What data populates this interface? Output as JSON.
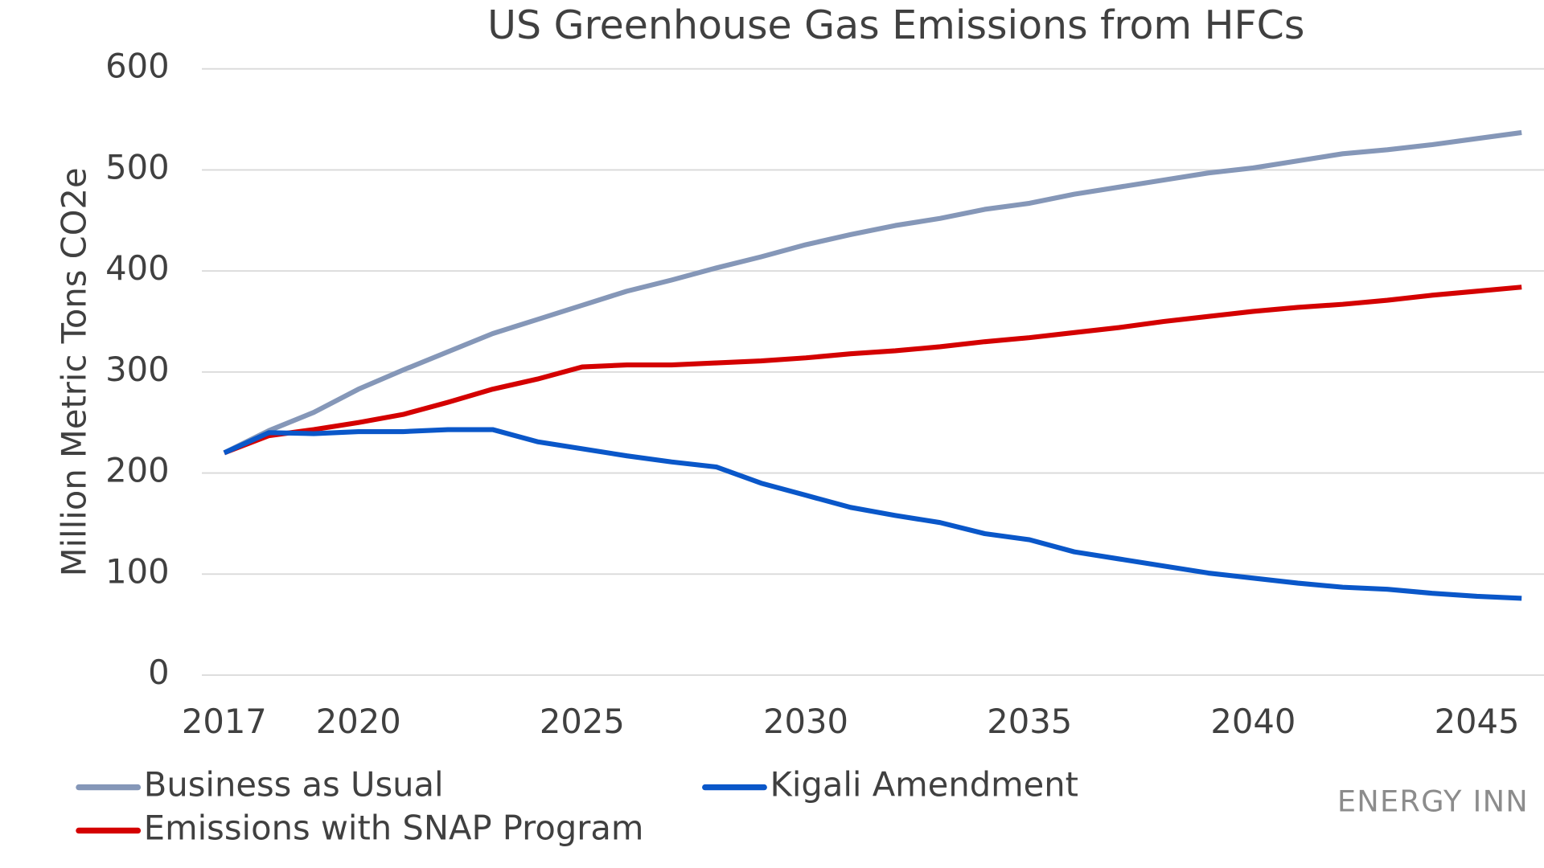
{
  "chart_data": {
    "type": "line",
    "title": "US Greenhouse Gas Emissions  from HFCs",
    "y_label": "Million Metric Tons CO2e",
    "source": "ENERGY INN",
    "x": [
      2017,
      2018,
      2019,
      2020,
      2021,
      2022,
      2023,
      2024,
      2025,
      2026,
      2027,
      2028,
      2029,
      2030,
      2031,
      2032,
      2033,
      2034,
      2035,
      2036,
      2037,
      2038,
      2039,
      2040,
      2041,
      2042,
      2043,
      2044,
      2045,
      2046
    ],
    "xlim": [
      2016.5,
      2046.5
    ],
    "xticks": [
      2017,
      2020,
      2025,
      2030,
      2035,
      2040,
      2045
    ],
    "ylim": [
      0,
      600
    ],
    "yticks": [
      0,
      100,
      200,
      300,
      400,
      500,
      600
    ],
    "grid": true,
    "series": [
      {
        "name": "Business as Usual",
        "color": "#8597b8",
        "values": [
          220,
          242,
          260,
          283,
          302,
          320,
          338,
          352,
          366,
          380,
          391,
          403,
          414,
          426,
          436,
          445,
          452,
          461,
          467,
          476,
          483,
          490,
          497,
          502,
          509,
          516,
          520,
          525,
          531,
          537
        ]
      },
      {
        "name": "Kigali Amendment",
        "color": "#0a57c9",
        "values": [
          220,
          240,
          239,
          241,
          241,
          243,
          243,
          231,
          224,
          217,
          211,
          206,
          190,
          178,
          166,
          158,
          151,
          140,
          134,
          122,
          115,
          108,
          101,
          96,
          91,
          87,
          85,
          81,
          78,
          76
        ]
      },
      {
        "name": "Emissions with SNAP Program",
        "color": "#d40000",
        "values": [
          220,
          237,
          243,
          250,
          258,
          270,
          283,
          293,
          305,
          307,
          307,
          309,
          311,
          314,
          318,
          321,
          325,
          330,
          334,
          339,
          344,
          350,
          355,
          360,
          364,
          367,
          371,
          376,
          380,
          384
        ]
      }
    ]
  }
}
